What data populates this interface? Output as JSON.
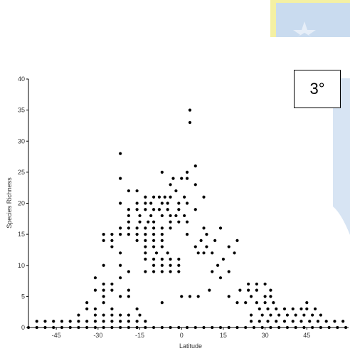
{
  "resolution_label": "3°",
  "colors": {
    "points": "#000000",
    "axis": "#000000",
    "watermark": "#c9dbef",
    "watermark_accent": "#f4f0a3"
  },
  "watermark": {
    "icon": "university-seal"
  },
  "chart_data": {
    "type": "scatter",
    "title": "",
    "xlabel": "Latitude",
    "ylabel": "Species Richness",
    "xticks": [
      -45,
      -30,
      -15,
      0,
      15,
      30,
      45
    ],
    "yticks": [
      0,
      5,
      10,
      15,
      20,
      25,
      30,
      35,
      40
    ],
    "xlim": [
      -55,
      60
    ],
    "ylim": [
      0,
      40
    ],
    "grid": false,
    "points": [
      {
        "x": 3,
        "y": 35
      },
      {
        "x": 3,
        "y": 33
      },
      {
        "x": -22,
        "y": 28
      },
      {
        "x": 5,
        "y": 26
      },
      {
        "x": -7,
        "y": 25
      },
      {
        "x": -3,
        "y": 24
      },
      {
        "x": 2,
        "y": 24
      },
      {
        "x": 0,
        "y": 24
      },
      {
        "x": -22,
        "y": 24
      },
      {
        "x": 2,
        "y": 25
      },
      {
        "x": -19,
        "y": 22
      },
      {
        "x": -16,
        "y": 22
      },
      {
        "x": -4,
        "y": 23
      },
      {
        "x": 5,
        "y": 23
      },
      {
        "x": -2,
        "y": 22
      },
      {
        "x": -13,
        "y": 21
      },
      {
        "x": -10,
        "y": 21
      },
      {
        "x": -8,
        "y": 21
      },
      {
        "x": -6,
        "y": 21
      },
      {
        "x": -4,
        "y": 21
      },
      {
        "x": 1,
        "y": 21
      },
      {
        "x": 8,
        "y": 21
      },
      {
        "x": -22,
        "y": 20
      },
      {
        "x": -16,
        "y": 20
      },
      {
        "x": -13,
        "y": 20
      },
      {
        "x": -11,
        "y": 20
      },
      {
        "x": -7,
        "y": 20
      },
      {
        "x": -5,
        "y": 20
      },
      {
        "x": -1,
        "y": 20
      },
      {
        "x": 2,
        "y": 20
      },
      {
        "x": -19,
        "y": 19
      },
      {
        "x": -16,
        "y": 19
      },
      {
        "x": -13,
        "y": 19
      },
      {
        "x": -10,
        "y": 19
      },
      {
        "x": -8,
        "y": 19
      },
      {
        "x": -5,
        "y": 19
      },
      {
        "x": -1,
        "y": 19
      },
      {
        "x": 5,
        "y": 19
      },
      {
        "x": -19,
        "y": 18
      },
      {
        "x": -15,
        "y": 18
      },
      {
        "x": -11,
        "y": 18
      },
      {
        "x": -7,
        "y": 18
      },
      {
        "x": -4,
        "y": 18
      },
      {
        "x": -2,
        "y": 18
      },
      {
        "x": 1,
        "y": 18
      },
      {
        "x": -19,
        "y": 17
      },
      {
        "x": -15,
        "y": 17
      },
      {
        "x": -12,
        "y": 17
      },
      {
        "x": -10,
        "y": 17
      },
      {
        "x": -4,
        "y": 17
      },
      {
        "x": -1,
        "y": 17
      },
      {
        "x": 2,
        "y": 17
      },
      {
        "x": -22,
        "y": 16
      },
      {
        "x": -19,
        "y": 16
      },
      {
        "x": -16,
        "y": 16
      },
      {
        "x": -13,
        "y": 16
      },
      {
        "x": -10,
        "y": 16
      },
      {
        "x": -7,
        "y": 16
      },
      {
        "x": -4,
        "y": 16
      },
      {
        "x": 8,
        "y": 16
      },
      {
        "x": 14,
        "y": 16
      },
      {
        "x": -28,
        "y": 15
      },
      {
        "x": -25,
        "y": 15
      },
      {
        "x": -22,
        "y": 15
      },
      {
        "x": -19,
        "y": 15
      },
      {
        "x": -16,
        "y": 15
      },
      {
        "x": -13,
        "y": 15
      },
      {
        "x": -10,
        "y": 15
      },
      {
        "x": -7,
        "y": 15
      },
      {
        "x": 2,
        "y": 15
      },
      {
        "x": 9,
        "y": 15
      },
      {
        "x": -25,
        "y": 14
      },
      {
        "x": -28,
        "y": 14
      },
      {
        "x": -16,
        "y": 14
      },
      {
        "x": -13,
        "y": 14
      },
      {
        "x": -10,
        "y": 14
      },
      {
        "x": -7,
        "y": 14
      },
      {
        "x": 7,
        "y": 14
      },
      {
        "x": 12,
        "y": 14
      },
      {
        "x": 20,
        "y": 14
      },
      {
        "x": -25,
        "y": 13
      },
      {
        "x": -13,
        "y": 13
      },
      {
        "x": -10,
        "y": 13
      },
      {
        "x": -7,
        "y": 13
      },
      {
        "x": 5,
        "y": 13
      },
      {
        "x": 9,
        "y": 13
      },
      {
        "x": 17,
        "y": 13
      },
      {
        "x": -22,
        "y": 12
      },
      {
        "x": -13,
        "y": 12
      },
      {
        "x": -9,
        "y": 12
      },
      {
        "x": -5,
        "y": 12
      },
      {
        "x": 6,
        "y": 12
      },
      {
        "x": 8,
        "y": 12
      },
      {
        "x": 11,
        "y": 12
      },
      {
        "x": 19,
        "y": 12
      },
      {
        "x": -13,
        "y": 11
      },
      {
        "x": -10,
        "y": 11
      },
      {
        "x": -7,
        "y": 11
      },
      {
        "x": -4,
        "y": 11
      },
      {
        "x": -1,
        "y": 11
      },
      {
        "x": 15,
        "y": 11
      },
      {
        "x": -28,
        "y": 10
      },
      {
        "x": -22,
        "y": 10
      },
      {
        "x": -10,
        "y": 10
      },
      {
        "x": -7,
        "y": 10
      },
      {
        "x": -4,
        "y": 10
      },
      {
        "x": -1,
        "y": 10
      },
      {
        "x": 13,
        "y": 10
      },
      {
        "x": -19,
        "y": 9
      },
      {
        "x": -13,
        "y": 9
      },
      {
        "x": -10,
        "y": 9
      },
      {
        "x": -7,
        "y": 9
      },
      {
        "x": -4,
        "y": 9
      },
      {
        "x": -1,
        "y": 9
      },
      {
        "x": 11,
        "y": 9
      },
      {
        "x": 17,
        "y": 9
      },
      {
        "x": -31,
        "y": 8
      },
      {
        "x": -22,
        "y": 8
      },
      {
        "x": 14,
        "y": 8
      },
      {
        "x": -28,
        "y": 7
      },
      {
        "x": -25,
        "y": 7
      },
      {
        "x": 24,
        "y": 7
      },
      {
        "x": 27,
        "y": 7
      },
      {
        "x": 30,
        "y": 7
      },
      {
        "x": -31,
        "y": 6
      },
      {
        "x": -28,
        "y": 6
      },
      {
        "x": -25,
        "y": 6
      },
      {
        "x": -19,
        "y": 6
      },
      {
        "x": 10,
        "y": 6
      },
      {
        "x": 21,
        "y": 6
      },
      {
        "x": 24,
        "y": 6
      },
      {
        "x": 27,
        "y": 6
      },
      {
        "x": 32,
        "y": 6
      },
      {
        "x": -28,
        "y": 5
      },
      {
        "x": -22,
        "y": 5
      },
      {
        "x": -19,
        "y": 5
      },
      {
        "x": 0,
        "y": 5
      },
      {
        "x": 3,
        "y": 5
      },
      {
        "x": 6,
        "y": 5
      },
      {
        "x": 17,
        "y": 5
      },
      {
        "x": 25,
        "y": 5
      },
      {
        "x": 30,
        "y": 5
      },
      {
        "x": 32,
        "y": 5
      },
      {
        "x": -34,
        "y": 4
      },
      {
        "x": -28,
        "y": 4
      },
      {
        "x": -7,
        "y": 4
      },
      {
        "x": 20,
        "y": 4
      },
      {
        "x": 23,
        "y": 4
      },
      {
        "x": 27,
        "y": 4
      },
      {
        "x": 30,
        "y": 4
      },
      {
        "x": 33,
        "y": 4
      },
      {
        "x": 45,
        "y": 4
      },
      {
        "x": -34,
        "y": 3
      },
      {
        "x": -31,
        "y": 3
      },
      {
        "x": -25,
        "y": 3
      },
      {
        "x": -16,
        "y": 3
      },
      {
        "x": 28,
        "y": 3
      },
      {
        "x": 31,
        "y": 3
      },
      {
        "x": 34,
        "y": 3
      },
      {
        "x": 37,
        "y": 3
      },
      {
        "x": 40,
        "y": 3
      },
      {
        "x": 43,
        "y": 3
      },
      {
        "x": 45,
        "y": 3
      },
      {
        "x": 48,
        "y": 3
      },
      {
        "x": -37,
        "y": 2
      },
      {
        "x": -31,
        "y": 2
      },
      {
        "x": -28,
        "y": 2
      },
      {
        "x": -25,
        "y": 2
      },
      {
        "x": -22,
        "y": 2
      },
      {
        "x": -19,
        "y": 2
      },
      {
        "x": -15,
        "y": 2
      },
      {
        "x": 25,
        "y": 2
      },
      {
        "x": 29,
        "y": 2
      },
      {
        "x": 32,
        "y": 2
      },
      {
        "x": 35,
        "y": 2
      },
      {
        "x": 38,
        "y": 2
      },
      {
        "x": 41,
        "y": 2
      },
      {
        "x": 44,
        "y": 2
      },
      {
        "x": 47,
        "y": 2
      },
      {
        "x": 50,
        "y": 2
      },
      {
        "x": -52,
        "y": 1
      },
      {
        "x": -49,
        "y": 1
      },
      {
        "x": -46,
        "y": 1
      },
      {
        "x": -43,
        "y": 1
      },
      {
        "x": -40,
        "y": 1
      },
      {
        "x": -37,
        "y": 1
      },
      {
        "x": -34,
        "y": 1
      },
      {
        "x": -31,
        "y": 1
      },
      {
        "x": -28,
        "y": 1
      },
      {
        "x": -25,
        "y": 1
      },
      {
        "x": -22,
        "y": 1
      },
      {
        "x": -19,
        "y": 1
      },
      {
        "x": -16,
        "y": 1
      },
      {
        "x": -13,
        "y": 1
      },
      {
        "x": 25,
        "y": 1
      },
      {
        "x": 28,
        "y": 1
      },
      {
        "x": 31,
        "y": 1
      },
      {
        "x": 34,
        "y": 1
      },
      {
        "x": 37,
        "y": 1
      },
      {
        "x": 40,
        "y": 1
      },
      {
        "x": 43,
        "y": 1
      },
      {
        "x": 46,
        "y": 1
      },
      {
        "x": 49,
        "y": 1
      },
      {
        "x": 52,
        "y": 1
      },
      {
        "x": 55,
        "y": 1
      },
      {
        "x": 58,
        "y": 1
      },
      {
        "x": -55,
        "y": 0
      },
      {
        "x": -52,
        "y": 0
      },
      {
        "x": -49,
        "y": 0
      },
      {
        "x": -46,
        "y": 0
      },
      {
        "x": -43,
        "y": 0
      },
      {
        "x": -40,
        "y": 0
      },
      {
        "x": -37,
        "y": 0
      },
      {
        "x": -34,
        "y": 0
      },
      {
        "x": -31,
        "y": 0
      },
      {
        "x": -28,
        "y": 0
      },
      {
        "x": -25,
        "y": 0
      },
      {
        "x": -22,
        "y": 0
      },
      {
        "x": -19,
        "y": 0
      },
      {
        "x": -16,
        "y": 0
      },
      {
        "x": -13,
        "y": 0
      },
      {
        "x": -10,
        "y": 0
      },
      {
        "x": -7,
        "y": 0
      },
      {
        "x": -4,
        "y": 0
      },
      {
        "x": -1,
        "y": 0
      },
      {
        "x": 2,
        "y": 0
      },
      {
        "x": 5,
        "y": 0
      },
      {
        "x": 8,
        "y": 0
      },
      {
        "x": 11,
        "y": 0
      },
      {
        "x": 14,
        "y": 0
      },
      {
        "x": 17,
        "y": 0
      },
      {
        "x": 20,
        "y": 0
      },
      {
        "x": 23,
        "y": 0
      },
      {
        "x": 26,
        "y": 0
      },
      {
        "x": 29,
        "y": 0
      },
      {
        "x": 32,
        "y": 0
      },
      {
        "x": 35,
        "y": 0
      },
      {
        "x": 38,
        "y": 0
      },
      {
        "x": 41,
        "y": 0
      },
      {
        "x": 44,
        "y": 0
      },
      {
        "x": 47,
        "y": 0
      },
      {
        "x": 50,
        "y": 0
      },
      {
        "x": 53,
        "y": 0
      },
      {
        "x": 56,
        "y": 0
      },
      {
        "x": 59,
        "y": 0
      }
    ]
  }
}
